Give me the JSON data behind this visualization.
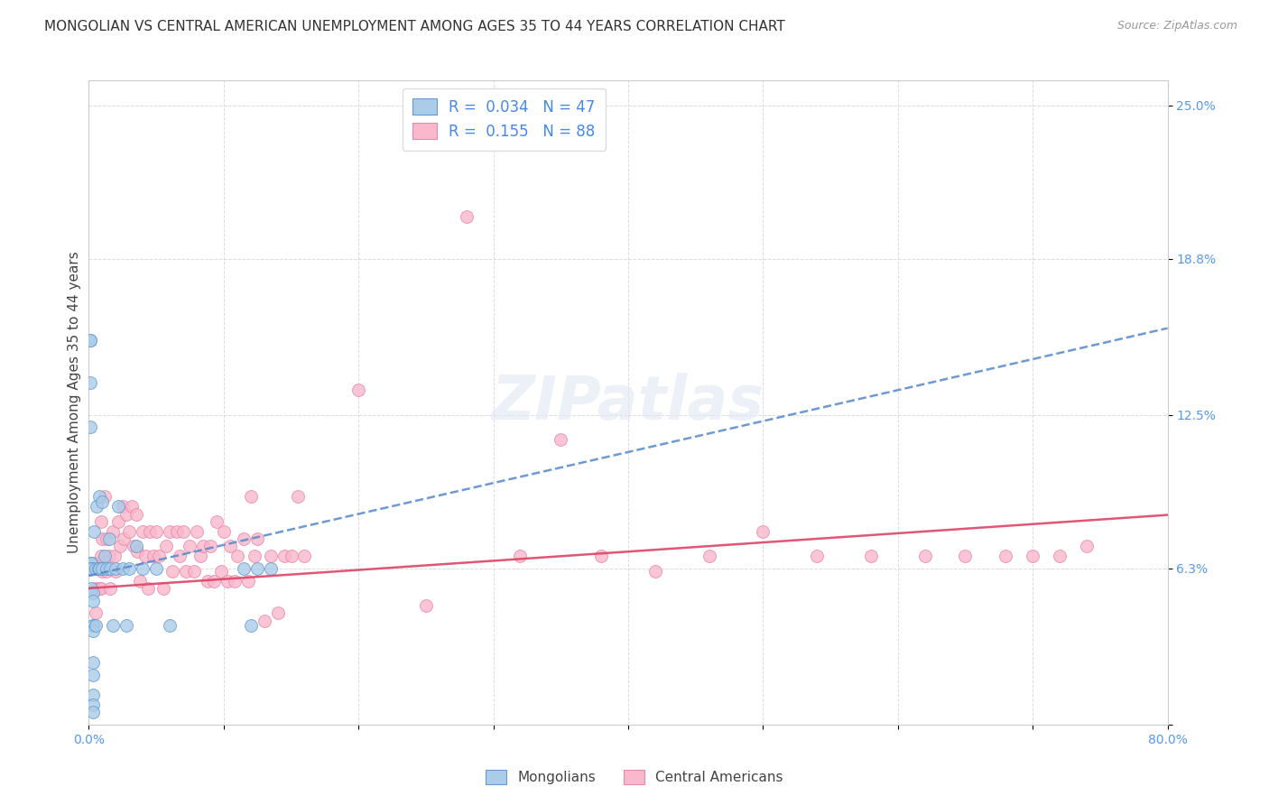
{
  "title": "MONGOLIAN VS CENTRAL AMERICAN UNEMPLOYMENT AMONG AGES 35 TO 44 YEARS CORRELATION CHART",
  "source": "Source: ZipAtlas.com",
  "ylabel": "Unemployment Among Ages 35 to 44 years",
  "xlim": [
    0.0,
    0.8
  ],
  "ylim": [
    0.0,
    0.26
  ],
  "yticks": [
    0.0,
    0.063,
    0.125,
    0.188,
    0.25
  ],
  "ytick_labels": [
    "",
    "6.3%",
    "12.5%",
    "18.8%",
    "25.0%"
  ],
  "mongolian_fill": "#aacce8",
  "mongolian_edge": "#6699cc",
  "central_fill": "#f9b8cc",
  "central_edge": "#e888a8",
  "trend_mongolian_color": "#5588cc",
  "trend_central_color": "#dd4466",
  "legend_R_mongolian": "0.034",
  "legend_N_mongolian": "47",
  "legend_R_central": "0.155",
  "legend_N_central": "88",
  "mongolian_x": [
    0.001,
    0.001,
    0.001,
    0.001,
    0.001,
    0.002,
    0.002,
    0.002,
    0.002,
    0.002,
    0.003,
    0.003,
    0.003,
    0.003,
    0.003,
    0.003,
    0.003,
    0.003,
    0.003,
    0.003,
    0.004,
    0.005,
    0.005,
    0.006,
    0.007,
    0.008,
    0.008,
    0.01,
    0.01,
    0.012,
    0.013,
    0.015,
    0.016,
    0.018,
    0.02,
    0.022,
    0.025,
    0.028,
    0.03,
    0.035,
    0.04,
    0.05,
    0.06,
    0.115,
    0.12,
    0.125,
    0.135
  ],
  "mongolian_y": [
    0.155,
    0.155,
    0.138,
    0.12,
    0.065,
    0.065,
    0.065,
    0.063,
    0.063,
    0.055,
    0.053,
    0.05,
    0.04,
    0.04,
    0.038,
    0.025,
    0.02,
    0.012,
    0.008,
    0.005,
    0.078,
    0.063,
    0.04,
    0.088,
    0.063,
    0.092,
    0.063,
    0.09,
    0.063,
    0.068,
    0.063,
    0.075,
    0.063,
    0.04,
    0.063,
    0.088,
    0.063,
    0.04,
    0.063,
    0.072,
    0.063,
    0.063,
    0.04,
    0.063,
    0.04,
    0.063,
    0.063
  ],
  "central_x": [
    0.005,
    0.005,
    0.005,
    0.007,
    0.008,
    0.009,
    0.009,
    0.009,
    0.01,
    0.01,
    0.012,
    0.013,
    0.013,
    0.015,
    0.016,
    0.018,
    0.019,
    0.02,
    0.022,
    0.023,
    0.025,
    0.026,
    0.028,
    0.03,
    0.032,
    0.033,
    0.035,
    0.036,
    0.038,
    0.04,
    0.042,
    0.044,
    0.045,
    0.048,
    0.05,
    0.052,
    0.055,
    0.057,
    0.06,
    0.062,
    0.065,
    0.067,
    0.07,
    0.072,
    0.075,
    0.078,
    0.08,
    0.083,
    0.085,
    0.088,
    0.09,
    0.093,
    0.095,
    0.098,
    0.1,
    0.103,
    0.105,
    0.108,
    0.11,
    0.115,
    0.118,
    0.12,
    0.123,
    0.125,
    0.13,
    0.135,
    0.14,
    0.145,
    0.15,
    0.155,
    0.16,
    0.2,
    0.25,
    0.28,
    0.32,
    0.35,
    0.38,
    0.42,
    0.46,
    0.5,
    0.54,
    0.58,
    0.62,
    0.65,
    0.68,
    0.7,
    0.72,
    0.74
  ],
  "central_y": [
    0.065,
    0.055,
    0.045,
    0.065,
    0.055,
    0.082,
    0.068,
    0.055,
    0.075,
    0.062,
    0.092,
    0.075,
    0.062,
    0.068,
    0.055,
    0.078,
    0.068,
    0.062,
    0.082,
    0.072,
    0.088,
    0.075,
    0.085,
    0.078,
    0.088,
    0.072,
    0.085,
    0.07,
    0.058,
    0.078,
    0.068,
    0.055,
    0.078,
    0.068,
    0.078,
    0.068,
    0.055,
    0.072,
    0.078,
    0.062,
    0.078,
    0.068,
    0.078,
    0.062,
    0.072,
    0.062,
    0.078,
    0.068,
    0.072,
    0.058,
    0.072,
    0.058,
    0.082,
    0.062,
    0.078,
    0.058,
    0.072,
    0.058,
    0.068,
    0.075,
    0.058,
    0.092,
    0.068,
    0.075,
    0.042,
    0.068,
    0.045,
    0.068,
    0.068,
    0.092,
    0.068,
    0.135,
    0.048,
    0.205,
    0.068,
    0.115,
    0.068,
    0.062,
    0.068,
    0.078,
    0.068,
    0.068,
    0.068,
    0.068,
    0.068,
    0.068,
    0.068,
    0.072
  ],
  "watermark": "ZIPatlas",
  "background_color": "#ffffff",
  "grid_color": "#cccccc",
  "title_fontsize": 11,
  "axis_fontsize": 11,
  "tick_fontsize": 10,
  "marker_size": 100
}
